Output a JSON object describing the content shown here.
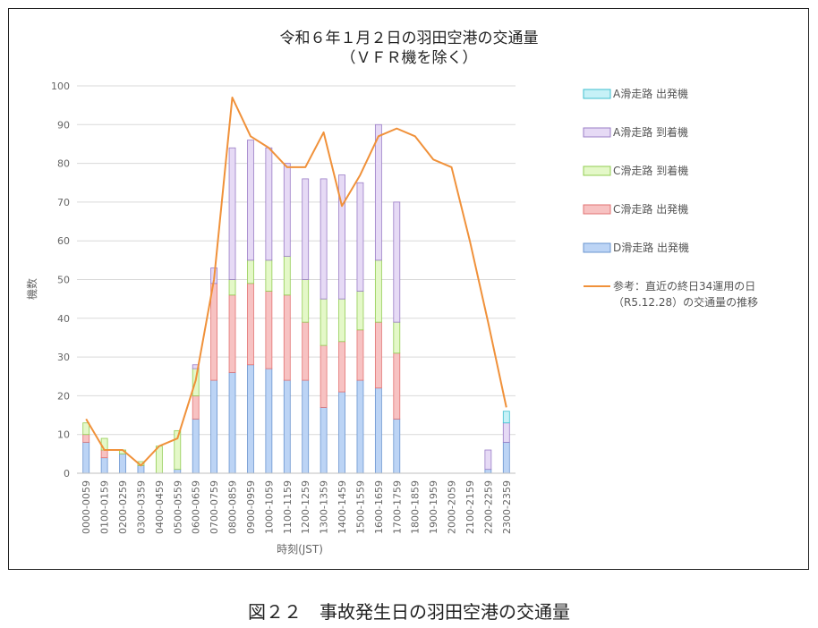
{
  "caption": "図２２　事故発生日の羽田空港の交通量",
  "chart_data": {
    "type": "bar",
    "stacked": true,
    "title": "令和６年１月２日の羽田空港の交通量",
    "subtitle": "（ＶＦＲ機を除く）",
    "xlabel": "時刻(JST)",
    "ylabel": "機数",
    "ylim": [
      0,
      100
    ],
    "yticks": [
      0,
      10,
      20,
      30,
      40,
      50,
      60,
      70,
      80,
      90,
      100
    ],
    "grid": true,
    "legend_position": "right",
    "categories": [
      "0000-0059",
      "0100-0159",
      "0200-0259",
      "0300-0359",
      "0400-0459",
      "0500-0559",
      "0600-0659",
      "0700-0759",
      "0800-0859",
      "0900-0959",
      "1000-1059",
      "1100-1159",
      "1200-1259",
      "1300-1359",
      "1400-1459",
      "1500-1559",
      "1600-1659",
      "1700-1759",
      "1800-1859",
      "1900-1959",
      "2000-2059",
      "2100-2159",
      "2200-2259",
      "2300-2359"
    ],
    "series": [
      {
        "name": "D滑走路 出発機",
        "fill": "#bcd4f5",
        "stroke": "#6a94cf",
        "values": [
          8,
          4,
          5,
          2,
          0,
          1,
          14,
          24,
          26,
          28,
          27,
          24,
          24,
          17,
          21,
          24,
          22,
          14,
          0,
          0,
          0,
          0,
          1,
          8
        ]
      },
      {
        "name": "C滑走路 出発機",
        "fill": "#f7c2c2",
        "stroke": "#e27272",
        "values": [
          2,
          2,
          0,
          0,
          0,
          0,
          6,
          25,
          20,
          21,
          20,
          22,
          15,
          16,
          13,
          13,
          17,
          17,
          0,
          0,
          0,
          0,
          0,
          0
        ]
      },
      {
        "name": "C滑走路 到着機",
        "fill": "#e4f8c8",
        "stroke": "#92cc52",
        "values": [
          3,
          3,
          1,
          1,
          7,
          10,
          7,
          0,
          4,
          6,
          8,
          10,
          11,
          12,
          11,
          10,
          16,
          8,
          0,
          0,
          0,
          0,
          0,
          0
        ]
      },
      {
        "name": "A滑走路 到着機",
        "fill": "#e6daf5",
        "stroke": "#9a7cc6",
        "values": [
          0,
          0,
          0,
          0,
          0,
          0,
          1,
          4,
          34,
          31,
          29,
          24,
          26,
          31,
          32,
          28,
          35,
          31,
          0,
          0,
          0,
          0,
          5,
          5
        ]
      },
      {
        "name": "A滑走路 出発機",
        "fill": "#c6f1f7",
        "stroke": "#3ebfcf",
        "values": [
          0,
          0,
          0,
          0,
          0,
          0,
          0,
          0,
          0,
          0,
          0,
          0,
          0,
          0,
          0,
          0,
          0,
          0,
          0,
          0,
          0,
          0,
          0,
          3
        ]
      }
    ],
    "line": {
      "name": "参考：直近の終日34運用の日（R5.12.28）の交通量の推移",
      "color": "#f0913a",
      "values": [
        14,
        6,
        6,
        2,
        7,
        9,
        24,
        50,
        97,
        87,
        84,
        79,
        79,
        88,
        69,
        77,
        87,
        89,
        87,
        81,
        79,
        60,
        39,
        17
      ]
    }
  }
}
